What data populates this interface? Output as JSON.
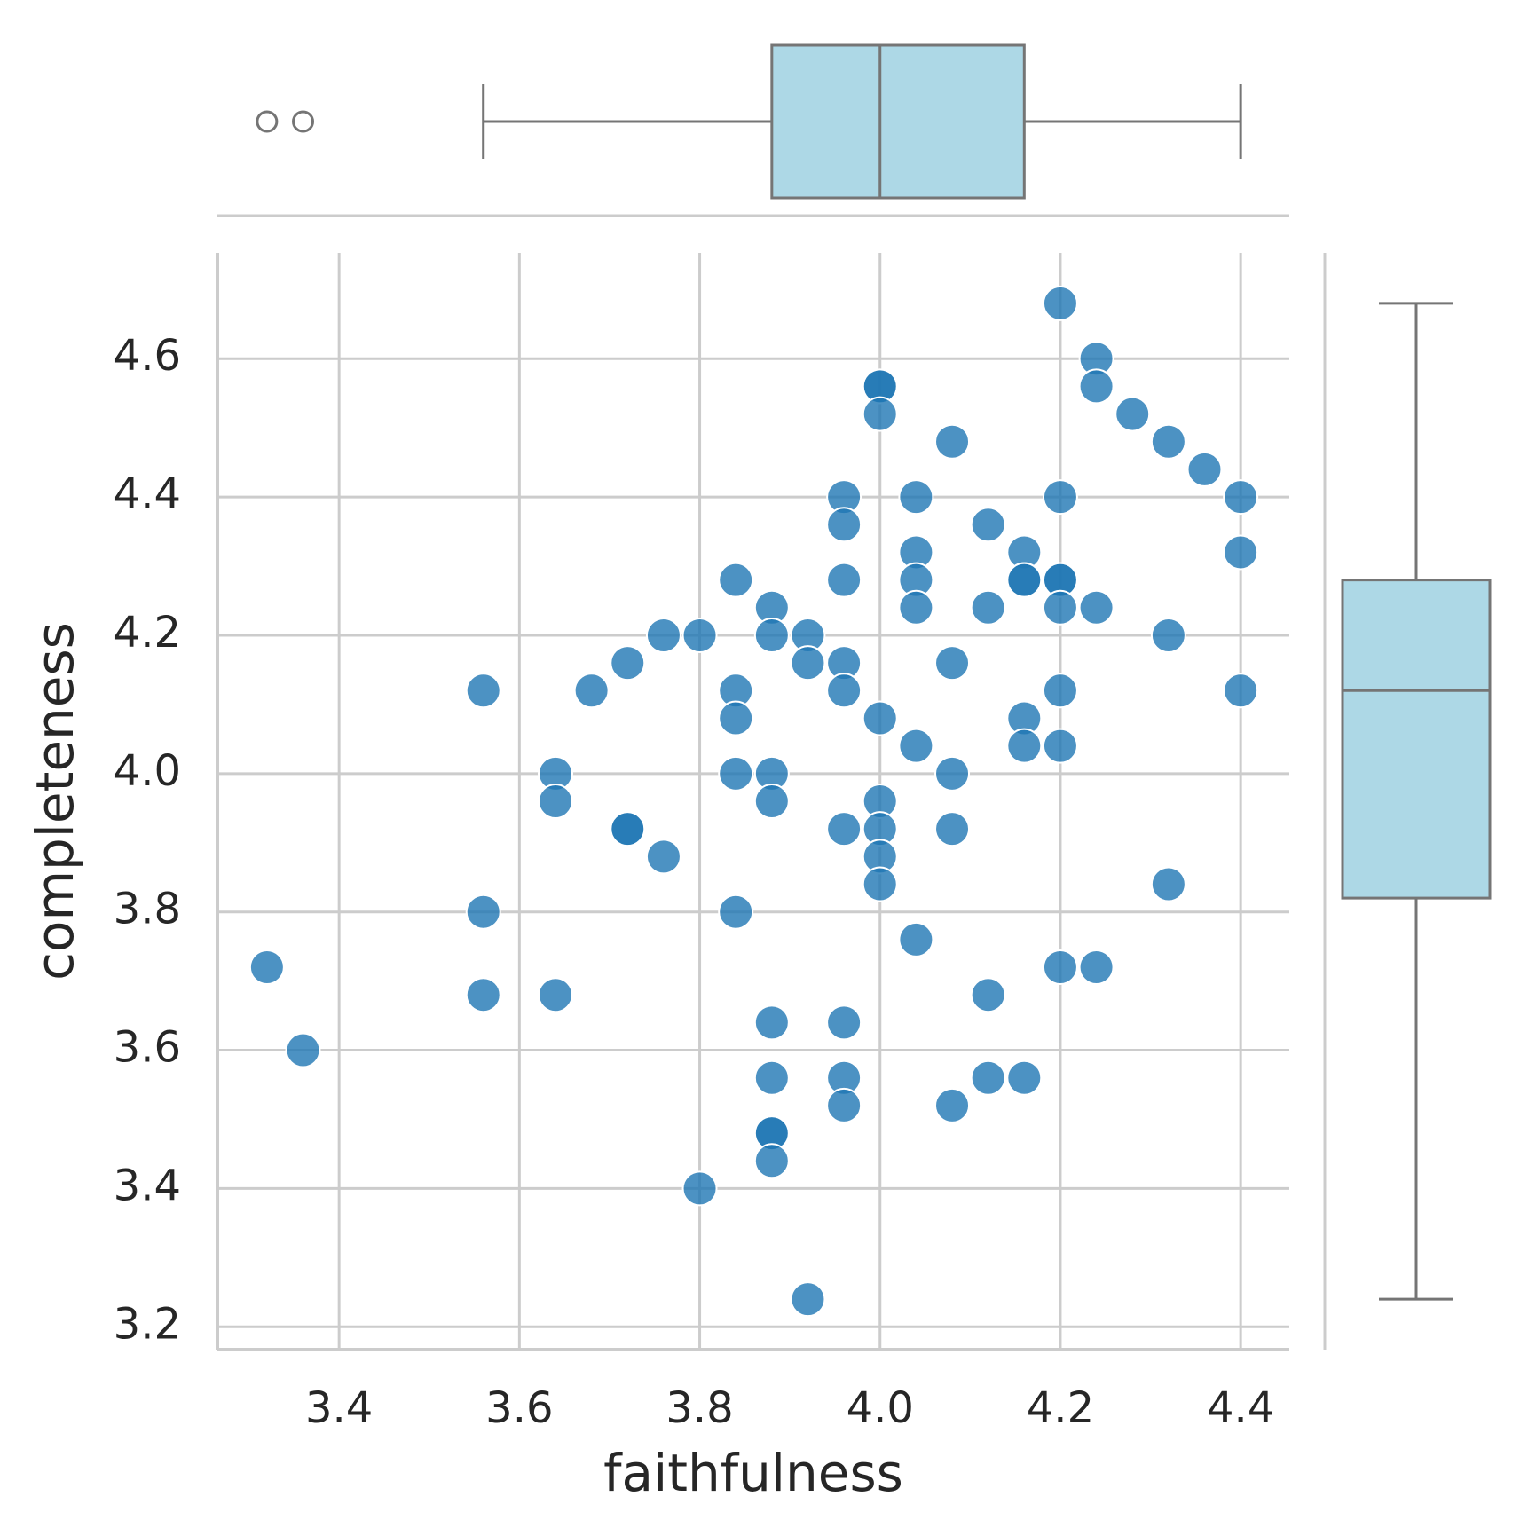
{
  "chart_data": [
    {
      "type": "scatter",
      "x_label": "faithfulness",
      "y_label": "completeness",
      "color": "#1f77b4",
      "grid": true,
      "xlim": [
        3.265,
        4.454
      ],
      "ylim": [
        3.167,
        4.753
      ],
      "xticks": [
        3.4,
        3.6,
        3.8,
        {
          "value": 4,
          "label": "4.0"
        },
        4.2,
        4.4
      ],
      "yticks": [
        3.2,
        3.4,
        3.6,
        3.8,
        {
          "value": 4,
          "label": "4.0"
        },
        4.2,
        4.4,
        4.6
      ],
      "x": [
        4.2,
        4.24,
        4.0,
        4.0,
        4.24,
        4.28,
        4.0,
        4.08,
        4.32,
        4.36,
        3.96,
        4.04,
        4.2,
        4.4,
        3.96,
        4.12,
        4.04,
        4.16,
        4.4,
        3.84,
        3.96,
        4.04,
        4.16,
        4.16,
        4.2,
        4.2,
        3.88,
        4.04,
        4.12,
        4.2,
        4.24,
        3.76,
        3.8,
        3.88,
        3.92,
        4.32,
        3.72,
        3.92,
        3.96,
        4.08,
        3.56,
        3.68,
        3.84,
        3.96,
        4.2,
        4.4,
        3.84,
        4.0,
        4.16,
        4.04,
        4.16,
        4.2,
        3.64,
        3.84,
        3.88,
        4.08,
        3.64,
        3.88,
        4.0,
        3.72,
        3.72,
        3.96,
        4.0,
        4.08,
        3.76,
        4.0,
        4.0,
        4.32,
        3.56,
        3.84,
        4.04,
        3.32,
        4.2,
        4.24,
        3.56,
        3.64,
        4.12,
        3.88,
        3.96,
        3.36,
        3.88,
        3.96,
        4.12,
        4.16,
        3.96,
        4.08,
        3.88,
        3.88,
        3.88,
        3.8,
        3.92
      ],
      "y": [
        4.68,
        4.6,
        4.56,
        4.56,
        4.56,
        4.52,
        4.52,
        4.48,
        4.48,
        4.44,
        4.4,
        4.4,
        4.4,
        4.4,
        4.36,
        4.36,
        4.32,
        4.32,
        4.32,
        4.28,
        4.28,
        4.28,
        4.28,
        4.28,
        4.28,
        4.28,
        4.24,
        4.24,
        4.24,
        4.24,
        4.24,
        4.2,
        4.2,
        4.2,
        4.2,
        4.2,
        4.16,
        4.16,
        4.16,
        4.16,
        4.12,
        4.12,
        4.12,
        4.12,
        4.12,
        4.12,
        4.08,
        4.08,
        4.08,
        4.04,
        4.04,
        4.04,
        4.0,
        4.0,
        4.0,
        4.0,
        3.96,
        3.96,
        3.96,
        3.92,
        3.92,
        3.92,
        3.92,
        3.92,
        3.88,
        3.88,
        3.84,
        3.84,
        3.8,
        3.8,
        3.76,
        3.72,
        3.72,
        3.72,
        3.68,
        3.68,
        3.68,
        3.64,
        3.64,
        3.6,
        3.56,
        3.56,
        3.56,
        3.56,
        3.52,
        3.52,
        3.48,
        3.48,
        3.44,
        3.4,
        3.24
      ]
    },
    {
      "type": "box",
      "orientation": "horizontal",
      "color": "#add8e6",
      "min": 3.56,
      "q1": 3.88,
      "median": 4.0,
      "q3": 4.16,
      "max": 4.4,
      "outliers": [
        3.32,
        3.36
      ]
    },
    {
      "type": "box",
      "orientation": "vertical",
      "color": "#add8e6",
      "min": 3.24,
      "q1": 3.82,
      "median": 4.12,
      "q3": 4.28,
      "max": 4.68,
      "outliers": []
    }
  ]
}
